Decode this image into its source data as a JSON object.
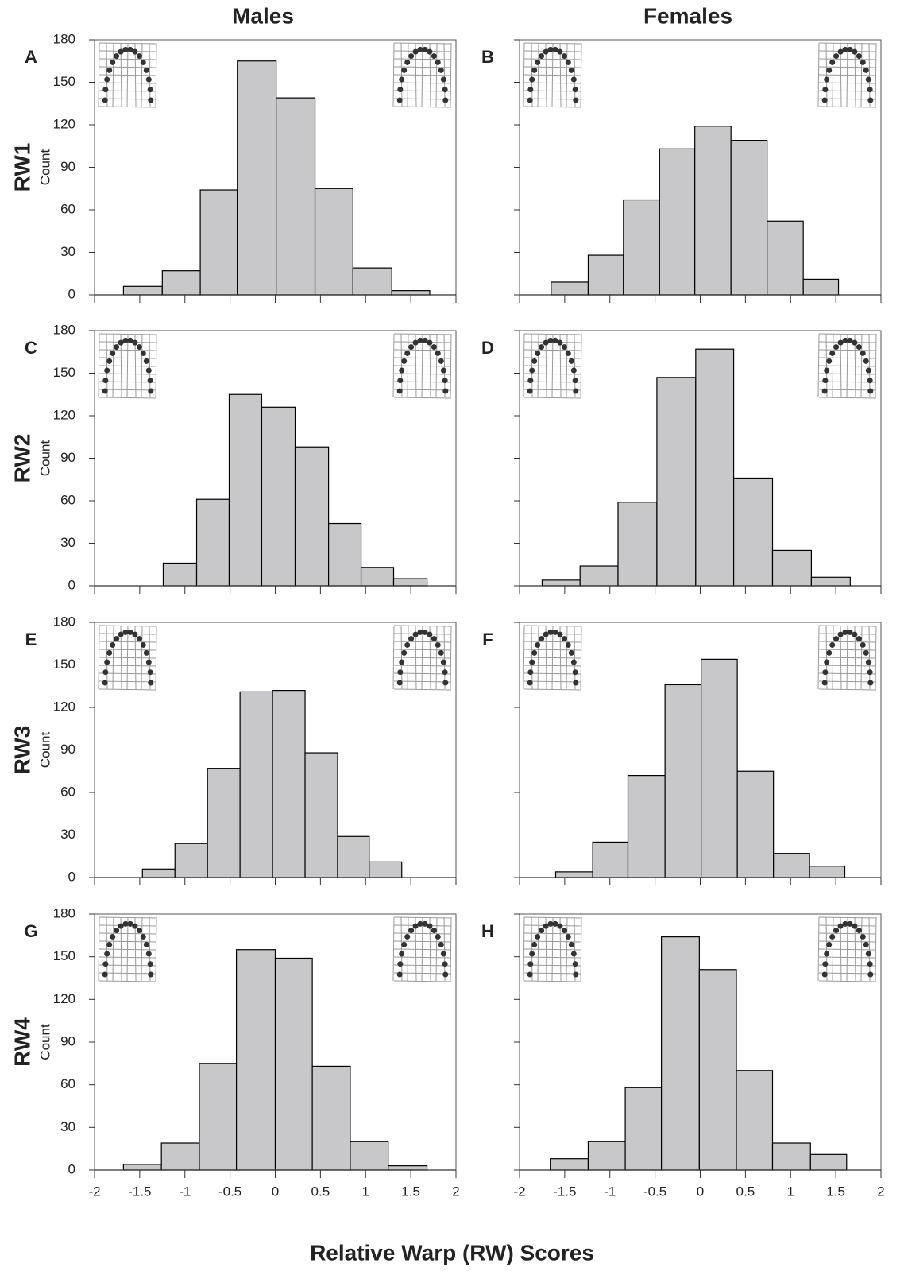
{
  "columns": [
    "Males",
    "Females"
  ],
  "rows": [
    "RW1",
    "RW2",
    "RW3",
    "RW4"
  ],
  "x_label": "Relative Warp (RW) Scores",
  "chart_data": [
    {
      "type": "histogram",
      "panel": "A",
      "ylabel": "Count",
      "color": "#c8c8ca",
      "bins": [
        -1.68,
        -1.25,
        -0.83,
        -0.42,
        0.01,
        0.44,
        0.86,
        1.29,
        1.71
      ],
      "counts": [
        6,
        17,
        74,
        165,
        139,
        75,
        19,
        3
      ],
      "xlim": [
        -2,
        2
      ],
      "ylim": [
        0,
        180
      ],
      "xticks": [
        -2,
        -1.5,
        -1,
        -0.5,
        0,
        0.5,
        1,
        1.5,
        2
      ],
      "yticks": [
        0,
        30,
        60,
        90,
        120,
        150,
        180
      ],
      "xtick_labels": false,
      "ytick_labels": true
    },
    {
      "type": "histogram",
      "panel": "B",
      "color": "#c8c8ca",
      "bins": [
        -1.65,
        -1.24,
        -0.85,
        -0.45,
        -0.06,
        0.34,
        0.74,
        1.14,
        1.53
      ],
      "counts": [
        9,
        28,
        67,
        103,
        119,
        109,
        52,
        11
      ],
      "xlim": [
        -2,
        2
      ],
      "ylim": [
        0,
        180
      ],
      "xticks": [
        -2,
        -1.5,
        -1,
        -0.5,
        0,
        0.5,
        1,
        1.5,
        2
      ],
      "yticks": [
        0,
        30,
        60,
        90,
        120,
        150,
        180
      ],
      "xtick_labels": false,
      "ytick_labels": false
    },
    {
      "type": "histogram",
      "panel": "C",
      "ylabel": "Count",
      "color": "#c8c8ca",
      "bins": [
        -1.24,
        -0.87,
        -0.51,
        -0.15,
        0.22,
        0.59,
        0.95,
        1.31,
        1.68
      ],
      "counts": [
        16,
        61,
        135,
        126,
        98,
        44,
        13,
        5
      ],
      "xlim": [
        -2,
        2
      ],
      "ylim": [
        0,
        180
      ],
      "xticks": [
        -2,
        -1.5,
        -1,
        -0.5,
        0,
        0.5,
        1,
        1.5,
        2
      ],
      "yticks": [
        0,
        30,
        60,
        90,
        120,
        150,
        180
      ],
      "xtick_labels": false,
      "ytick_labels": true
    },
    {
      "type": "histogram",
      "panel": "D",
      "color": "#c8c8ca",
      "bins": [
        -1.75,
        -1.33,
        -0.91,
        -0.48,
        -0.05,
        0.37,
        0.8,
        1.23,
        1.66
      ],
      "counts": [
        4,
        14,
        59,
        147,
        167,
        76,
        25,
        6
      ],
      "xlim": [
        -2,
        2
      ],
      "ylim": [
        0,
        180
      ],
      "xticks": [
        -2,
        -1.5,
        -1,
        -0.5,
        0,
        0.5,
        1,
        1.5,
        2
      ],
      "yticks": [
        0,
        30,
        60,
        90,
        120,
        150,
        180
      ],
      "xtick_labels": false,
      "ytick_labels": false
    },
    {
      "type": "histogram",
      "panel": "E",
      "ylabel": "Count",
      "color": "#c8c8ca",
      "bins": [
        -1.47,
        -1.11,
        -0.75,
        -0.39,
        -0.03,
        0.33,
        0.69,
        1.04,
        1.4
      ],
      "counts": [
        6,
        24,
        77,
        131,
        132,
        88,
        29,
        11
      ],
      "xlim": [
        -2,
        2
      ],
      "ylim": [
        0,
        180
      ],
      "xticks": [
        -2,
        -1.5,
        -1,
        -0.5,
        0,
        0.5,
        1,
        1.5,
        2
      ],
      "yticks": [
        0,
        30,
        60,
        90,
        120,
        150,
        180
      ],
      "xtick_labels": false,
      "ytick_labels": true
    },
    {
      "type": "histogram",
      "panel": "F",
      "color": "#c8c8ca",
      "bins": [
        -1.6,
        -1.19,
        -0.8,
        -0.39,
        0.01,
        0.41,
        0.81,
        1.21,
        1.6
      ],
      "counts": [
        4,
        25,
        72,
        136,
        154,
        75,
        17,
        8
      ],
      "xlim": [
        -2,
        2
      ],
      "ylim": [
        0,
        180
      ],
      "xticks": [
        -2,
        -1.5,
        -1,
        -0.5,
        0,
        0.5,
        1,
        1.5,
        2
      ],
      "yticks": [
        0,
        30,
        60,
        90,
        120,
        150,
        180
      ],
      "xtick_labels": false,
      "ytick_labels": false
    },
    {
      "type": "histogram",
      "panel": "G",
      "ylabel": "Count",
      "color": "#c8c8ca",
      "bins": [
        -1.68,
        -1.26,
        -0.84,
        -0.43,
        0,
        0.41,
        0.83,
        1.25,
        1.68
      ],
      "counts": [
        4,
        19,
        75,
        155,
        149,
        73,
        20,
        3
      ],
      "xlim": [
        -2,
        2
      ],
      "ylim": [
        0,
        180
      ],
      "xticks": [
        -2,
        -1.5,
        -1,
        -0.5,
        0,
        0.5,
        1,
        1.5,
        2
      ],
      "yticks": [
        0,
        30,
        60,
        90,
        120,
        150,
        180
      ],
      "xtick_labels": true,
      "ytick_labels": true
    },
    {
      "type": "histogram",
      "panel": "H",
      "color": "#c8c8ca",
      "bins": [
        -1.66,
        -1.24,
        -0.83,
        -0.43,
        -0.01,
        0.4,
        0.8,
        1.22,
        1.62
      ],
      "counts": [
        8,
        20,
        58,
        164,
        141,
        70,
        19,
        11
      ],
      "xlim": [
        -2,
        2
      ],
      "ylim": [
        0,
        180
      ],
      "xticks": [
        -2,
        -1.5,
        -1,
        -0.5,
        0,
        0.5,
        1,
        1.5,
        2
      ],
      "yticks": [
        0,
        30,
        60,
        90,
        120,
        150,
        180
      ],
      "xtick_labels": true,
      "ytick_labels": false
    }
  ]
}
